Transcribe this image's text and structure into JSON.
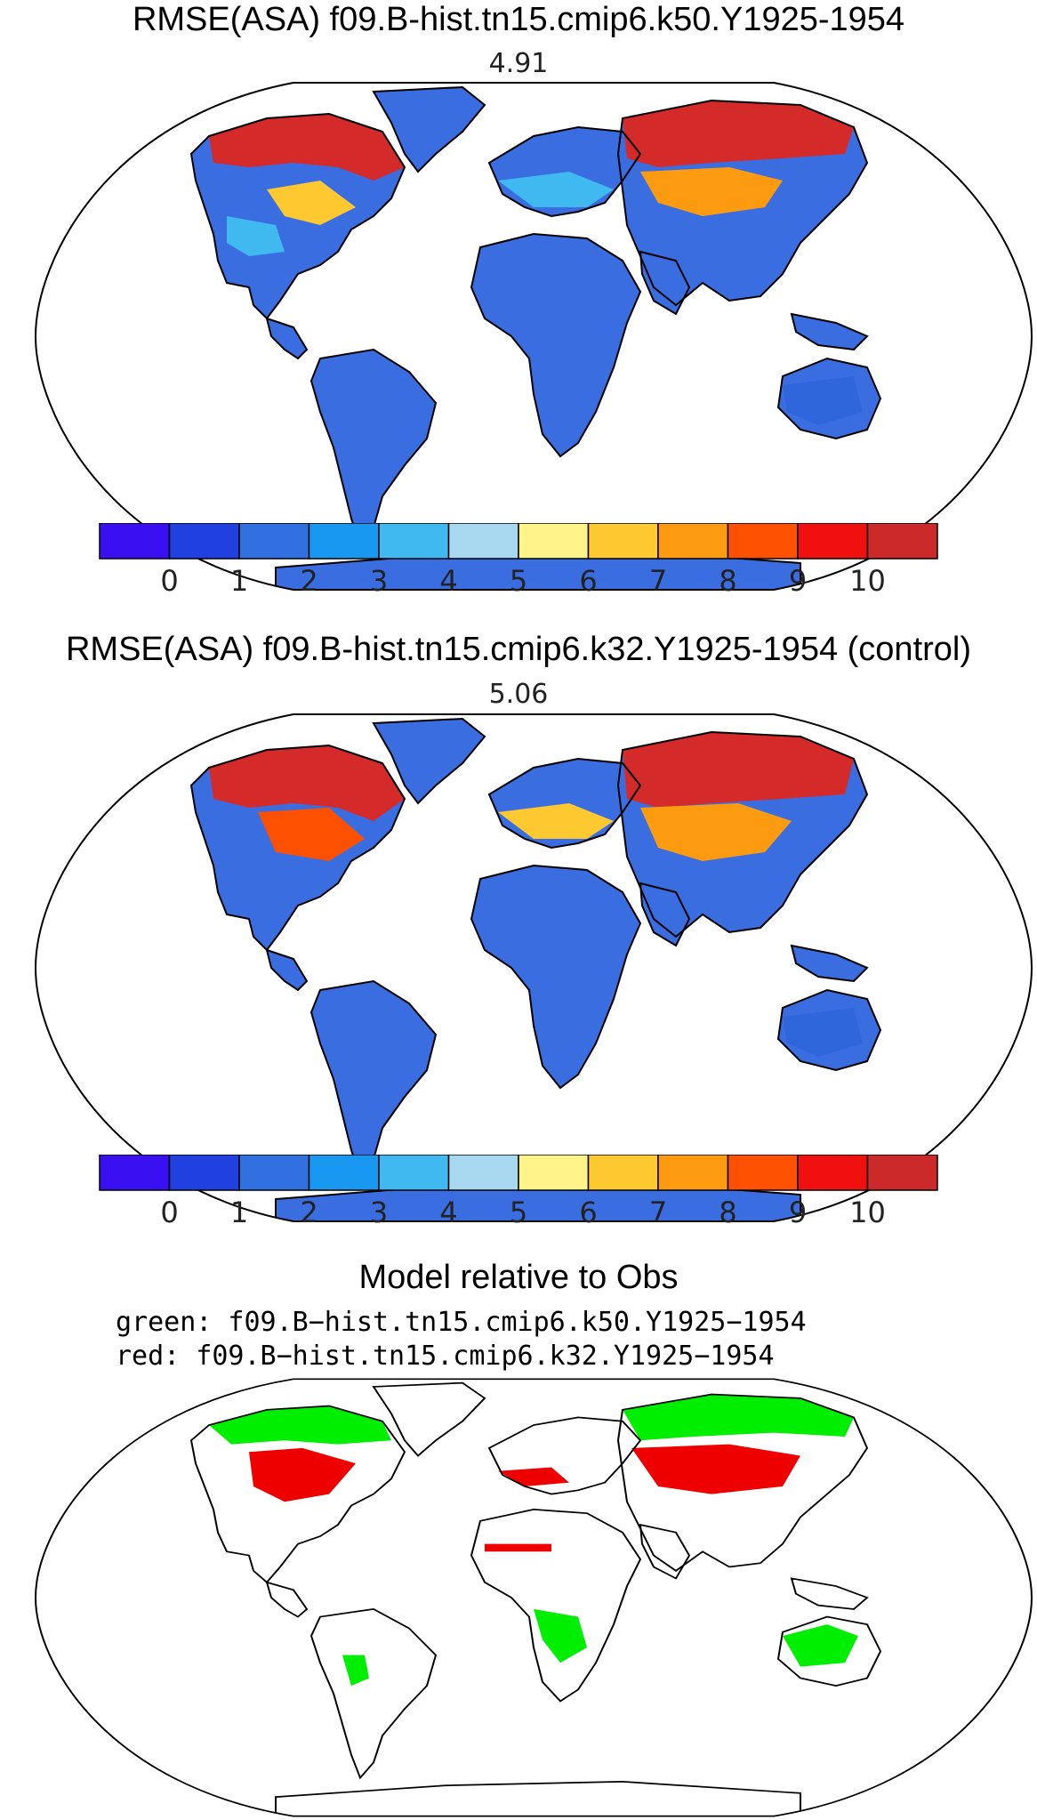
{
  "panels": [
    {
      "title": "RMSE(ASA) f09.B-hist.tn15.cmip6.k50.Y1925-1954",
      "global_value": "4.91"
    },
    {
      "title": "RMSE(ASA) f09.B-hist.tn15.cmip6.k32.Y1925-1954 (control)",
      "global_value": "5.06"
    }
  ],
  "colorbar": {
    "colors": [
      "#3a10f2",
      "#2040e0",
      "#3070e0",
      "#1898f0",
      "#40b8f0",
      "#a8d8f0",
      "#fff38a",
      "#fec830",
      "#fd9b10",
      "#fd5000",
      "#f01010",
      "#cc2a2a"
    ],
    "tick_labels": [
      "0",
      "1",
      "2",
      "3",
      "4",
      "5",
      "6",
      "7",
      "8",
      "9",
      "10"
    ]
  },
  "comparison": {
    "title": "Model relative to Obs",
    "legend_green": "green: f09.B−hist.tn15.cmip6.k50.Y1925−1954",
    "legend_red": "red: f09.B−hist.tn15.cmip6.k32.Y1925−1954",
    "colors": {
      "green": "#00ee00",
      "red": "#ee0000"
    }
  }
}
